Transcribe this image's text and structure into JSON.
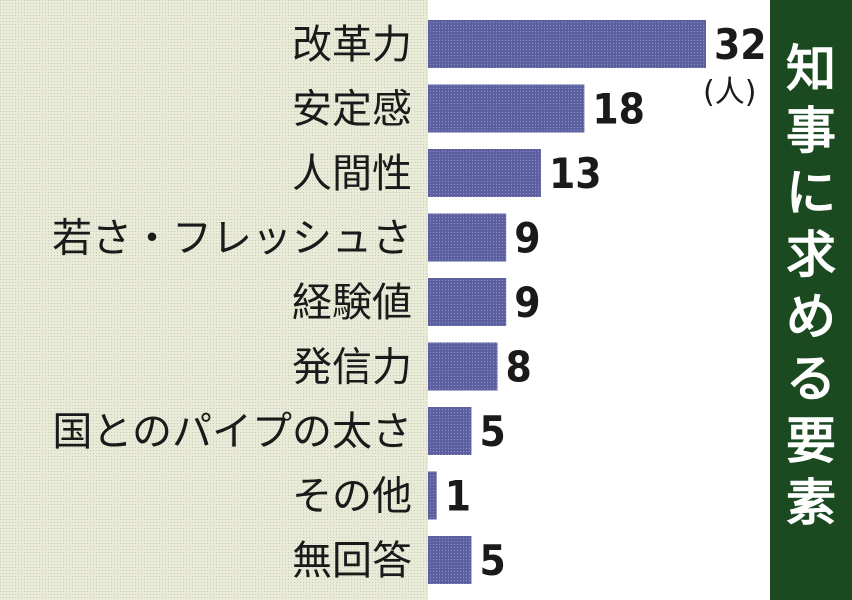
{
  "chart_data": {
    "type": "bar",
    "orientation": "horizontal",
    "title": "知事に求める要素",
    "unit": "(人)",
    "categories": [
      "改革力",
      "安定感",
      "人間性",
      "若さ・フレッシュさ",
      "経験値",
      "発信力",
      "国とのパイプの太さ",
      "その他",
      "無回答"
    ],
    "values": [
      32,
      18,
      13,
      9,
      9,
      8,
      5,
      1,
      5
    ],
    "value_labels": [
      "32",
      "18",
      "13",
      "9",
      "9",
      "8",
      "5",
      "1",
      "5"
    ],
    "grid": false,
    "legend": "none"
  },
  "colors": {
    "label_panel": "#e7e9d6",
    "bar": "#585b98",
    "title_band": "#1b4a20",
    "title_text": "#ffffff",
    "text": "#1a1a1a"
  }
}
